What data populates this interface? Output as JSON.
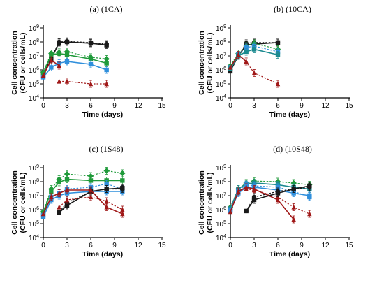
{
  "panels": [
    {
      "id": "1CA",
      "title": "(a) (1CA)"
    },
    {
      "id": "10CA",
      "title": "(b) (10CA)"
    },
    {
      "id": "1S48",
      "title": "(c) (1S48)"
    },
    {
      "id": "10S48",
      "title": "(d) (10S48)"
    }
  ],
  "colors": {
    "black": "#1a1a1a",
    "green": "#1f9a3a",
    "blue": "#2f8fdc",
    "teal": "#1b8a8f",
    "red": "#a01818"
  },
  "chart_data": [
    {
      "type": "line",
      "title": "(a) (1CA)",
      "xlabel": "Time (days)",
      "ylabel": "Cell concentration (CFU or cells/mL)",
      "yscale": "log",
      "xlim": [
        0,
        15
      ],
      "ylim": [
        10000,
        1000000000
      ],
      "xticks": [
        "0",
        "3",
        "6",
        "9",
        "12",
        "15"
      ],
      "yticks": [
        "10^4",
        "10^5",
        "10^6",
        "10^7",
        "10^8",
        "10^9"
      ],
      "series": [
        {
          "color": "black",
          "marker": "circle",
          "dashed": true,
          "x": [
            0,
            1,
            2,
            3,
            6,
            8
          ],
          "y": [
            500000,
            8000000,
            100000000,
            110000000,
            90000000,
            70000000
          ]
        },
        {
          "color": "black",
          "marker": "square",
          "dashed": false,
          "x": [
            0,
            1,
            2,
            3,
            6,
            8
          ],
          "y": [
            400000,
            6000000,
            90000000,
            100000000,
            80000000,
            60000000
          ]
        },
        {
          "color": "green",
          "marker": "diamond",
          "dashed": true,
          "x": [
            0,
            1,
            2,
            3,
            6,
            8
          ],
          "y": [
            700000,
            15000000,
            18000000,
            20000000,
            8000000,
            6000000
          ]
        },
        {
          "color": "green",
          "marker": "square",
          "dashed": false,
          "x": [
            0,
            1,
            2,
            3,
            6,
            8
          ],
          "y": [
            600000,
            12000000,
            15000000,
            12000000,
            6000000,
            3000000
          ]
        },
        {
          "color": "blue",
          "marker": "square",
          "dashed": false,
          "x": [
            0,
            1,
            2,
            3,
            6,
            8
          ],
          "y": [
            300000,
            1500000,
            3000000,
            4000000,
            2500000,
            1000000
          ]
        },
        {
          "color": "red",
          "marker": "triangle",
          "dashed": false,
          "x": [
            0,
            1,
            2
          ],
          "y": [
            400000,
            5000000,
            2000000
          ]
        },
        {
          "color": "red",
          "marker": "triangle",
          "dashed": true,
          "x": [
            2,
            3,
            6,
            8
          ],
          "y": [
            150000,
            150000,
            100000,
            100000
          ]
        }
      ]
    },
    {
      "type": "line",
      "title": "(b) (10CA)",
      "xlabel": "Time (days)",
      "ylabel": "Cell concentration (CFU or cells/mL)",
      "yscale": "log",
      "xlim": [
        0,
        15
      ],
      "ylim": [
        10000,
        1000000000
      ],
      "xticks": [
        "0",
        "3",
        "6",
        "9",
        "12",
        "15"
      ],
      "yticks": [
        "10^4",
        "10^5",
        "10^6",
        "10^7",
        "10^8",
        "10^9"
      ],
      "series": [
        {
          "color": "black",
          "marker": "circle",
          "dashed": true,
          "x": [
            0,
            1,
            2,
            3,
            6
          ],
          "y": [
            1000000,
            10000000,
            80000000,
            90000000,
            90000000
          ]
        },
        {
          "color": "black",
          "marker": "square",
          "dashed": false,
          "x": [
            0,
            1,
            2,
            3,
            6
          ],
          "y": [
            800000,
            10000000,
            60000000,
            70000000,
            90000000
          ]
        },
        {
          "color": "green",
          "marker": "diamond",
          "dashed": true,
          "x": [
            0,
            1,
            2,
            3,
            6
          ],
          "y": [
            2000000,
            15000000,
            50000000,
            80000000,
            30000000
          ]
        },
        {
          "color": "blue",
          "marker": "square",
          "dashed": true,
          "x": [
            0,
            1,
            2,
            3,
            6
          ],
          "y": [
            1500000,
            12000000,
            40000000,
            50000000,
            20000000
          ]
        },
        {
          "color": "teal",
          "marker": "square",
          "dashed": false,
          "x": [
            0,
            1,
            2,
            3,
            6
          ],
          "y": [
            1200000,
            10000000,
            20000000,
            30000000,
            12000000
          ]
        },
        {
          "color": "red",
          "marker": "triangle",
          "dashed": false,
          "x": [
            0,
            1,
            2
          ],
          "y": [
            1500000,
            12000000,
            4000000
          ]
        },
        {
          "color": "red",
          "marker": "triangle",
          "dashed": true,
          "x": [
            2,
            3,
            6
          ],
          "y": [
            4000000,
            600000,
            100000
          ]
        }
      ]
    },
    {
      "type": "line",
      "title": "(c) (1S48)",
      "xlabel": "Time (days)",
      "ylabel": "Cell concentration (CFU or cells/mL)",
      "yscale": "log",
      "xlim": [
        0,
        15
      ],
      "ylim": [
        10000,
        1000000000
      ],
      "xticks": [
        "0",
        "3",
        "6",
        "9",
        "12",
        "15"
      ],
      "yticks": [
        "10^4",
        "10^5",
        "10^6",
        "10^7",
        "10^8",
        "10^9"
      ],
      "series": [
        {
          "color": "green",
          "marker": "diamond",
          "dashed": true,
          "x": [
            0,
            1,
            2,
            3,
            6,
            8,
            10
          ],
          "y": [
            700000,
            30000000,
            150000000,
            350000000,
            250000000,
            600000000,
            400000000
          ]
        },
        {
          "color": "green",
          "marker": "square",
          "dashed": false,
          "x": [
            0,
            1,
            2,
            3,
            6,
            8,
            10
          ],
          "y": [
            600000,
            20000000,
            90000000,
            150000000,
            120000000,
            120000000,
            120000000
          ]
        },
        {
          "color": "blue",
          "marker": "square",
          "dashed": true,
          "x": [
            0,
            1,
            2,
            3,
            6,
            8,
            10
          ],
          "y": [
            400000,
            8000000,
            15000000,
            30000000,
            40000000,
            70000000,
            30000000
          ]
        },
        {
          "color": "blue",
          "marker": "square",
          "dashed": false,
          "x": [
            0,
            1,
            2,
            3,
            6,
            8,
            10
          ],
          "y": [
            300000,
            5000000,
            10000000,
            15000000,
            20000000,
            20000000,
            20000000
          ]
        },
        {
          "color": "black",
          "marker": "square",
          "dashed": false,
          "x": [
            2,
            3,
            6,
            8,
            10
          ],
          "y": [
            600000,
            2000000,
            20000000,
            30000000,
            35000000
          ]
        },
        {
          "color": "black",
          "marker": "circle",
          "dashed": true,
          "x": [
            2,
            3,
            6,
            8,
            10
          ],
          "y": [
            700000,
            3000000,
            20000000,
            30000000,
            30000000
          ]
        },
        {
          "color": "red",
          "marker": "triangle",
          "dashed": false,
          "x": [
            0,
            1,
            2,
            3,
            6,
            8,
            10
          ],
          "y": [
            500000,
            8000000,
            15000000,
            25000000,
            25000000,
            1500000,
            500000
          ]
        },
        {
          "color": "red",
          "marker": "triangle",
          "dashed": true,
          "x": [
            2,
            3,
            6,
            8,
            10
          ],
          "y": [
            1500000,
            5000000,
            8000000,
            4000000,
            1000000
          ]
        }
      ]
    },
    {
      "type": "line",
      "title": "(d) (10S48)",
      "xlabel": "Time (days)",
      "ylabel": "Cell concentration (CFU or cells/mL)",
      "yscale": "log",
      "xlim": [
        0,
        15
      ],
      "ylim": [
        10000,
        1000000000
      ],
      "xticks": [
        "0",
        "3",
        "6",
        "9",
        "12",
        "15"
      ],
      "yticks": [
        "10^4",
        "10^5",
        "10^6",
        "10^7",
        "10^8",
        "10^9"
      ],
      "series": [
        {
          "color": "green",
          "marker": "diamond",
          "dashed": true,
          "x": [
            0,
            1,
            2,
            3,
            6,
            8,
            10
          ],
          "y": [
            1500000,
            30000000,
            80000000,
            110000000,
            100000000,
            80000000,
            60000000
          ]
        },
        {
          "color": "teal",
          "marker": "square",
          "dashed": false,
          "x": [
            0,
            1,
            2,
            3,
            6,
            8,
            10
          ],
          "y": [
            1200000,
            30000000,
            70000000,
            80000000,
            60000000,
            40000000,
            30000000
          ]
        },
        {
          "color": "blue",
          "marker": "square",
          "dashed": true,
          "x": [
            0,
            1,
            2,
            3,
            6,
            8,
            10
          ],
          "y": [
            1000000,
            20000000,
            60000000,
            50000000,
            40000000,
            20000000,
            8000000
          ]
        },
        {
          "color": "blue",
          "marker": "square",
          "dashed": false,
          "x": [
            0,
            1,
            2,
            3,
            6,
            8,
            10
          ],
          "y": [
            800000,
            15000000,
            40000000,
            40000000,
            25000000,
            15000000,
            10000000
          ]
        },
        {
          "color": "red",
          "marker": "triangle",
          "dashed": false,
          "x": [
            0,
            1,
            2,
            3,
            6,
            8
          ],
          "y": [
            700000,
            20000000,
            40000000,
            30000000,
            5000000,
            200000
          ]
        },
        {
          "color": "red",
          "marker": "triangle",
          "dashed": true,
          "x": [
            2,
            3,
            6,
            8,
            10
          ],
          "y": [
            30000000,
            25000000,
            8000000,
            1500000,
            500000
          ]
        },
        {
          "color": "black",
          "marker": "square",
          "dashed": false,
          "x": [
            2,
            3,
            6,
            8,
            10
          ],
          "y": [
            800000,
            5000000,
            15000000,
            30000000,
            50000000
          ]
        },
        {
          "color": "black",
          "marker": "circle",
          "dashed": true,
          "x": [
            2,
            3,
            6,
            8,
            10
          ],
          "y": [
            800000,
            8000000,
            20000000,
            30000000,
            40000000
          ]
        }
      ]
    }
  ]
}
